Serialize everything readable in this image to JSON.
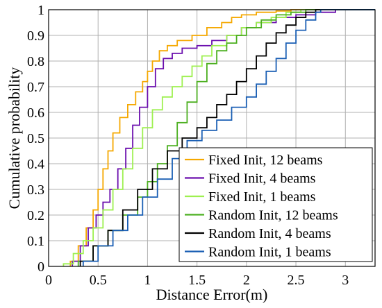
{
  "chart_data": {
    "type": "line",
    "title": "",
    "xlabel": "Distance Error(m)",
    "ylabel": "Cumulative probability",
    "xlim": [
      0,
      3.3
    ],
    "ylim": [
      0,
      1
    ],
    "xticks": [
      0,
      0.5,
      1,
      1.5,
      2,
      2.5,
      3
    ],
    "xtick_labels": [
      "0",
      "0.5",
      "1",
      "1.5",
      "2",
      "2.5",
      "3"
    ],
    "yticks": [
      0,
      0.1,
      0.2,
      0.3,
      0.4,
      0.5,
      0.6,
      0.7,
      0.8,
      0.9,
      1
    ],
    "ytick_labels": [
      "0",
      "0.1",
      "0.2",
      "0.3",
      "0.4",
      "0.5",
      "0.6",
      "0.7",
      "0.8",
      "0.9",
      "1"
    ],
    "grid": true,
    "legend_position": "bottom-right",
    "series": [
      {
        "name": "Fixed Init, 12 beams",
        "color": "#f5a800",
        "x": [
          0.22,
          0.3,
          0.38,
          0.45,
          0.5,
          0.55,
          0.6,
          0.65,
          0.72,
          0.8,
          0.88,
          0.95,
          1.0,
          1.05,
          1.12,
          1.2,
          1.3,
          1.45,
          1.6,
          1.75,
          1.85,
          1.95,
          2.1,
          2.3,
          2.45,
          2.6
        ],
        "y": [
          0.02,
          0.08,
          0.15,
          0.22,
          0.3,
          0.38,
          0.45,
          0.52,
          0.58,
          0.63,
          0.68,
          0.72,
          0.76,
          0.8,
          0.84,
          0.86,
          0.88,
          0.9,
          0.93,
          0.95,
          0.97,
          0.98,
          0.99,
          0.995,
          1.0,
          1.0
        ]
      },
      {
        "name": "Fixed Init, 4 beams",
        "color": "#6a0dad",
        "x": [
          0.24,
          0.32,
          0.4,
          0.48,
          0.55,
          0.62,
          0.7,
          0.78,
          0.85,
          0.92,
          1.0,
          1.08,
          1.16,
          1.25,
          1.35,
          1.5,
          1.65,
          1.8,
          1.95,
          2.1,
          2.3,
          2.5,
          2.7,
          2.9,
          3.08
        ],
        "y": [
          0.02,
          0.08,
          0.15,
          0.2,
          0.25,
          0.3,
          0.38,
          0.46,
          0.55,
          0.62,
          0.7,
          0.77,
          0.81,
          0.83,
          0.85,
          0.86,
          0.88,
          0.9,
          0.93,
          0.95,
          0.97,
          0.98,
          0.99,
          1.0,
          1.0
        ]
      },
      {
        "name": "Fixed Init, 1 beams",
        "color": "#9ef050",
        "x": [
          0.15,
          0.25,
          0.35,
          0.45,
          0.55,
          0.65,
          0.75,
          0.85,
          0.95,
          1.05,
          1.15,
          1.25,
          1.35,
          1.45,
          1.55,
          1.65,
          1.8,
          1.95,
          2.1,
          2.25,
          2.4,
          2.55
        ],
        "y": [
          0.01,
          0.05,
          0.1,
          0.15,
          0.22,
          0.3,
          0.38,
          0.46,
          0.54,
          0.61,
          0.66,
          0.7,
          0.74,
          0.78,
          0.82,
          0.86,
          0.9,
          0.93,
          0.95,
          0.97,
          0.99,
          1.0
        ]
      },
      {
        "name": "Random Init, 12 beams",
        "color": "#4caf20",
        "x": [
          0.3,
          0.45,
          0.6,
          0.75,
          0.9,
          1.0,
          1.1,
          1.2,
          1.3,
          1.4,
          1.5,
          1.6,
          1.7,
          1.8,
          1.9,
          2.0,
          2.15,
          2.3,
          2.45,
          2.6
        ],
        "y": [
          0.02,
          0.08,
          0.14,
          0.2,
          0.27,
          0.33,
          0.4,
          0.47,
          0.56,
          0.64,
          0.72,
          0.79,
          0.84,
          0.87,
          0.9,
          0.93,
          0.96,
          0.98,
          0.99,
          1.0
        ]
      },
      {
        "name": "Random Init, 4 beams",
        "color": "#000000",
        "x": [
          0.32,
          0.45,
          0.6,
          0.75,
          0.9,
          1.05,
          1.2,
          1.35,
          1.5,
          1.6,
          1.7,
          1.8,
          1.9,
          2.0,
          2.1,
          2.2,
          2.3,
          2.4,
          2.5,
          2.6,
          2.7
        ],
        "y": [
          0.02,
          0.08,
          0.14,
          0.22,
          0.3,
          0.38,
          0.45,
          0.5,
          0.54,
          0.58,
          0.63,
          0.67,
          0.72,
          0.77,
          0.82,
          0.87,
          0.91,
          0.94,
          0.97,
          0.99,
          1.0
        ]
      },
      {
        "name": "Random Init, 1 beams",
        "color": "#1a5fb4",
        "x": [
          0.35,
          0.5,
          0.65,
          0.8,
          0.95,
          1.1,
          1.25,
          1.4,
          1.55,
          1.7,
          1.85,
          2.0,
          2.1,
          2.2,
          2.3,
          2.4,
          2.5,
          2.6,
          2.7,
          2.75
        ],
        "y": [
          0.02,
          0.08,
          0.14,
          0.2,
          0.27,
          0.34,
          0.42,
          0.49,
          0.53,
          0.57,
          0.62,
          0.66,
          0.71,
          0.76,
          0.81,
          0.87,
          0.92,
          0.96,
          0.99,
          1.0
        ]
      }
    ]
  }
}
